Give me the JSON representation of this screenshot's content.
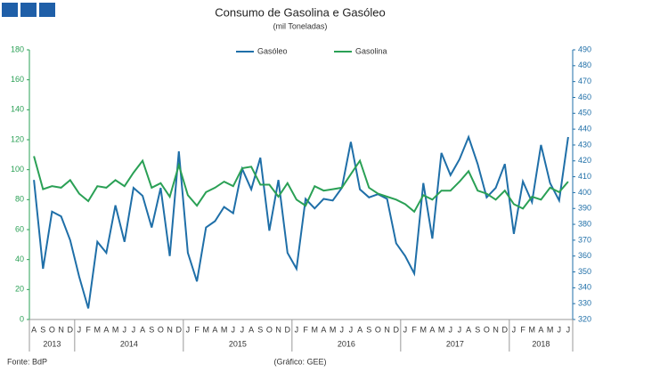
{
  "chart_data": {
    "type": "line",
    "title": "Consumo de Gasolina e Gasóleo",
    "subtitle": "(mil Toneladas)",
    "source": "Fonte: BdP",
    "credit": "(Gráfico: GEE)",
    "categories": [
      "A",
      "S",
      "O",
      "N",
      "D",
      "J",
      "F",
      "M",
      "A",
      "M",
      "J",
      "J",
      "A",
      "S",
      "O",
      "N",
      "D",
      "J",
      "F",
      "M",
      "A",
      "M",
      "J",
      "J",
      "A",
      "S",
      "O",
      "N",
      "D",
      "J",
      "F",
      "M",
      "A",
      "M",
      "J",
      "J",
      "A",
      "S",
      "O",
      "N",
      "D",
      "J",
      "F",
      "M",
      "A",
      "M",
      "J",
      "J",
      "A",
      "S",
      "O",
      "N",
      "D",
      "J",
      "F",
      "M",
      "A",
      "M",
      "J",
      "J"
    ],
    "years": [
      "2013",
      "2014",
      "2015",
      "2016",
      "2017",
      "2018"
    ],
    "series": [
      {
        "name": "Gasóleo",
        "color": "#1f6fa8",
        "axis": "y2",
        "values": [
          408,
          352,
          388,
          385,
          370,
          347,
          327,
          369,
          362,
          392,
          369,
          403,
          398,
          378,
          403,
          360,
          426,
          362,
          344,
          378,
          382,
          391,
          387,
          415,
          402,
          422,
          376,
          408,
          362,
          352,
          396,
          390,
          396,
          395,
          403,
          432,
          402,
          397,
          399,
          396,
          368,
          360,
          349,
          406,
          371,
          425,
          411,
          421,
          435,
          418,
          397,
          403,
          418,
          374,
          407,
          394,
          430,
          406,
          395,
          435
        ]
      },
      {
        "name": "Gasolina",
        "color": "#2aa055",
        "values": [
          109,
          87,
          89,
          88,
          93,
          84,
          79,
          89,
          88,
          93,
          89,
          98,
          106,
          88,
          91,
          82,
          103,
          83,
          76,
          85,
          88,
          92,
          89,
          101,
          102,
          90,
          90,
          82,
          91,
          80,
          76,
          89,
          86,
          87,
          88,
          97,
          106,
          88,
          84,
          82,
          80,
          77,
          72,
          83,
          80,
          86,
          86,
          92,
          99,
          86,
          84,
          80,
          86,
          77,
          74,
          82,
          80,
          88,
          85,
          92
        ]
      }
    ],
    "ylim": [
      0,
      180
    ],
    "yticks": [
      0,
      20,
      40,
      60,
      80,
      100,
      120,
      140,
      160,
      180
    ],
    "y2lim": [
      320,
      490
    ],
    "y2ticks": [
      320,
      330,
      340,
      350,
      360,
      370,
      380,
      390,
      400,
      410,
      420,
      430,
      440,
      450,
      460,
      470,
      480,
      490
    ],
    "legend": "top"
  }
}
